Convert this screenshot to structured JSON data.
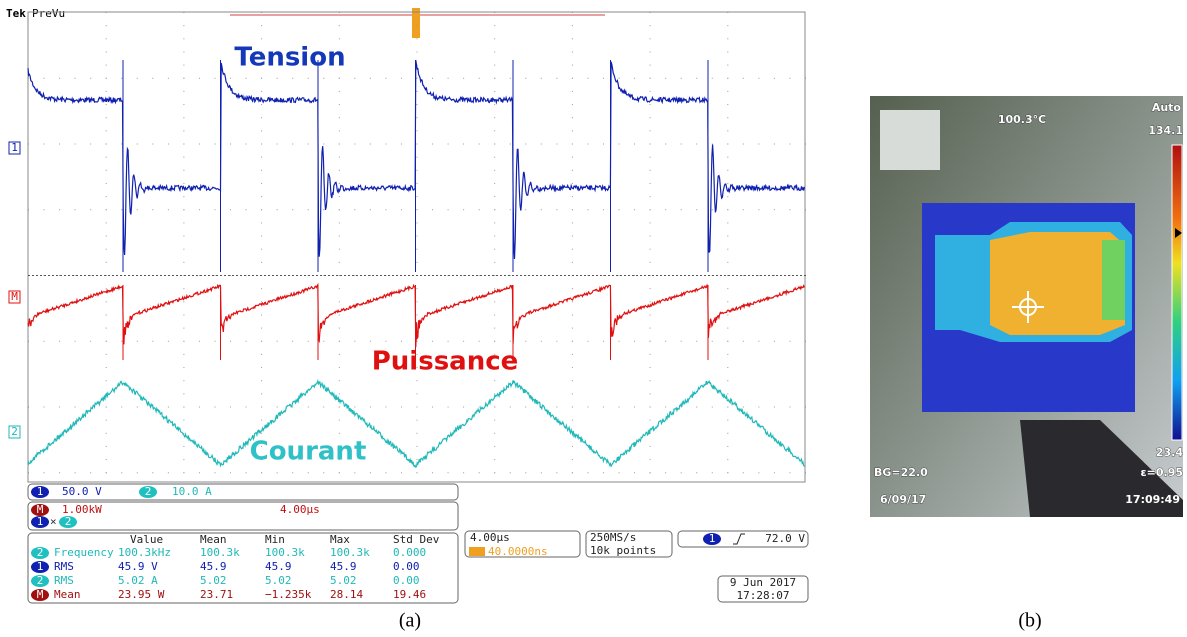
{
  "scope": {
    "brand": "Tek",
    "mode": "PreVu",
    "labels": {
      "tension": "Tension",
      "puissance": "Puissance",
      "courant": "Courant"
    },
    "markers": {
      "ch1": "1",
      "math": "M",
      "ch2": "2"
    },
    "ch1": {
      "id": "1",
      "scale": "50.0 V"
    },
    "ch2": {
      "id": "2",
      "scale": "10.0 A"
    },
    "math": {
      "id": "M",
      "scale": "1.00kW",
      "time": "4.00µs",
      "op_a": "1",
      "op": "×",
      "op_b": "2"
    },
    "measurements": {
      "header": [
        "Value",
        "Mean",
        "Min",
        "Max",
        "Std Dev"
      ],
      "rows": [
        {
          "ch": "2",
          "name": "Frequency",
          "cells": [
            "100.3kHz",
            "100.3k",
            "100.3k",
            "100.3k",
            "0.000"
          ]
        },
        {
          "ch": "1",
          "name": "RMS",
          "cells": [
            "45.9 V",
            "45.9",
            "45.9",
            "45.9",
            "0.00"
          ]
        },
        {
          "ch": "2",
          "name": "RMS",
          "cells": [
            "5.02 A",
            "5.02",
            "5.02",
            "5.02",
            "0.00"
          ]
        },
        {
          "ch": "M",
          "name": "Mean",
          "cells": [
            "23.95 W",
            "23.71",
            "−1.235k",
            "28.14",
            "19.46"
          ]
        }
      ]
    },
    "timebase": {
      "scale": "4.00µs",
      "delay": "40.0000ns"
    },
    "acquisition": {
      "rate": "250MS/s",
      "points": "10k points"
    },
    "trigger": {
      "ch": "1",
      "level": "72.0 V"
    },
    "date": "9 Jun  2017",
    "time": "17:28:07",
    "caption": "(a)"
  },
  "thermal": {
    "temperature": "100.3°C",
    "mode": "Auto",
    "scale_max": "134.1",
    "scale_min": "23.4",
    "bg": "BG=22.0",
    "emissivity": "ε=0.95",
    "date": "6/09/17",
    "time": "17:09:49",
    "caption": "(b)"
  }
}
